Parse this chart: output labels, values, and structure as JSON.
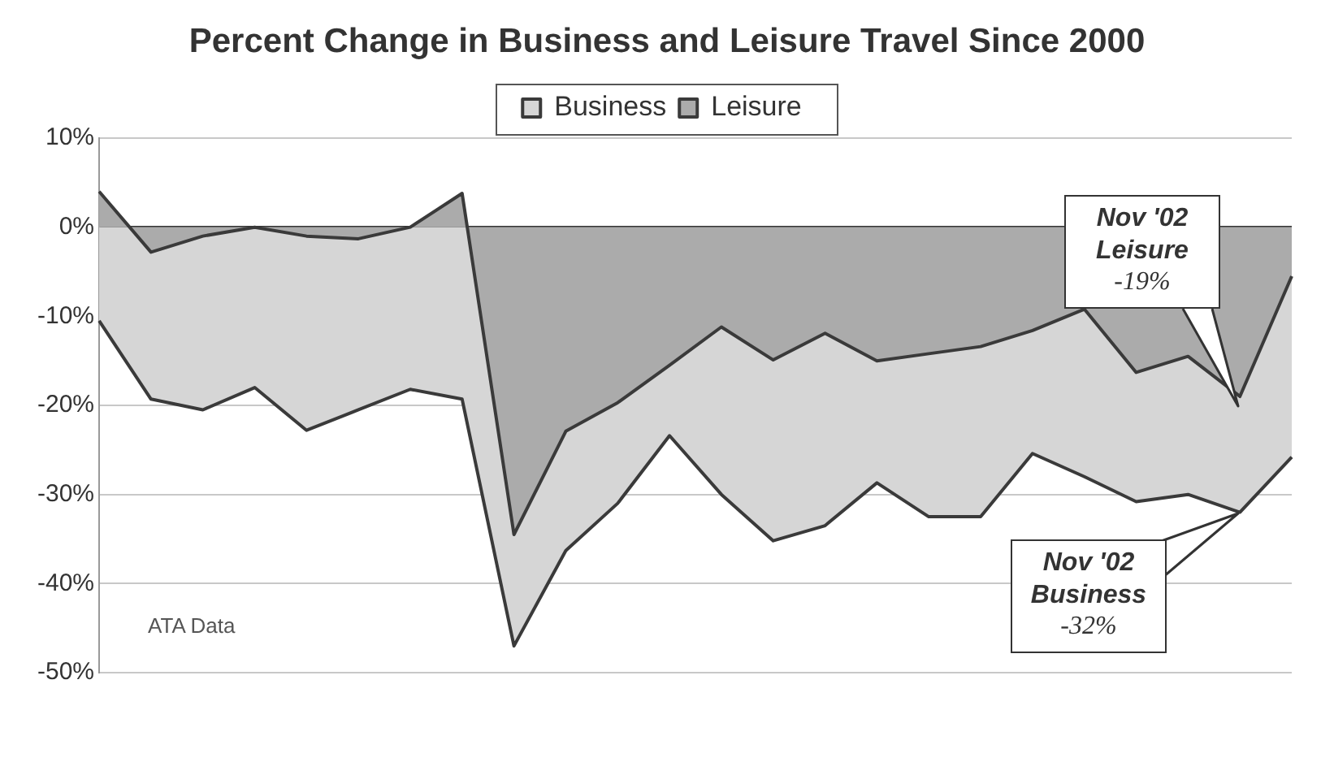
{
  "chart_data": {
    "type": "area",
    "title": "Percent Change in Business and Leisure Travel Since 2000",
    "categories": [
      null,
      null,
      null,
      null,
      null,
      null,
      null,
      null,
      null,
      null,
      null,
      null,
      null,
      null,
      null,
      null,
      null,
      null,
      null,
      null,
      null,
      null,
      null,
      null
    ],
    "series": [
      {
        "name": "Business",
        "color": "#d6d6d6",
        "values": [
          -10.5,
          -19.3,
          -20.5,
          -18,
          -22.8,
          -20.5,
          -18.2,
          -19.3,
          -47,
          -36.3,
          -31,
          -23.4,
          -30,
          -35.2,
          -33.5,
          -28.7,
          -32.5,
          -32.5,
          -25.4,
          -28,
          -30.8,
          -30,
          -32,
          -25.8
        ]
      },
      {
        "name": "Leisure",
        "color": "#ababab",
        "values": [
          4,
          -2.8,
          -1,
          0,
          -1,
          -1.3,
          0,
          3.8,
          -34.5,
          -22.9,
          -19.7,
          -15.5,
          -11.2,
          -14.9,
          -11.9,
          -15,
          -14.2,
          -13.4,
          -11.6,
          -9.2,
          -16.3,
          -14.5,
          -19,
          -5.5
        ]
      }
    ],
    "ylim": [
      -50,
      10
    ],
    "yticks": [
      {
        "value": 10,
        "label": "10%"
      },
      {
        "value": 0,
        "label": "0%"
      },
      {
        "value": -10,
        "label": "-10%"
      },
      {
        "value": -20,
        "label": "-20%"
      },
      {
        "value": -30,
        "label": "-30%"
      },
      {
        "value": -40,
        "label": "-40%"
      },
      {
        "value": -50,
        "label": "-50%"
      }
    ],
    "grid": "y",
    "legend": "top",
    "marker": "none",
    "tick_labels": "y",
    "annotations": [
      "Nov '02\nLeisure\n-19%",
      "Nov '02\nBusiness\n-32%",
      "ATA Data"
    ]
  }
}
